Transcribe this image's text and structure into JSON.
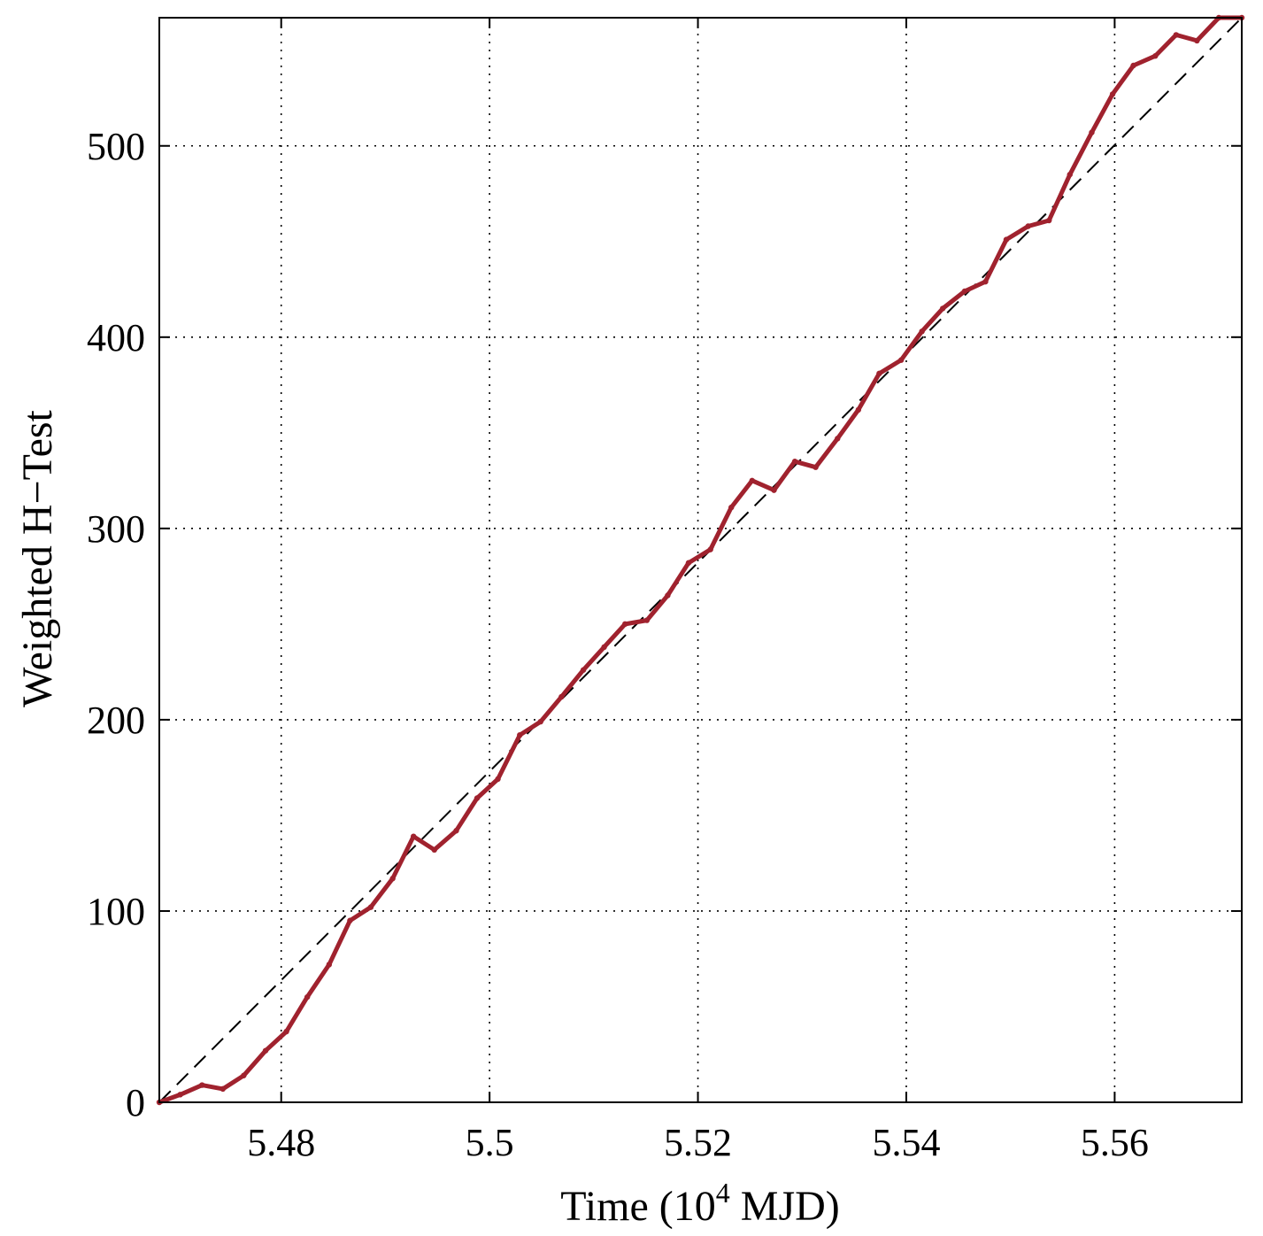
{
  "chart_data": {
    "type": "line",
    "title": "",
    "xlabel": "Time (10^4 MJD)",
    "xlabel_parts": {
      "base": "Time (10",
      "sup": "4",
      "rest": " MJD)"
    },
    "ylabel": "Weighted H−Test",
    "xlim": [
      5.4683,
      5.5722
    ],
    "ylim": [
      0,
      567
    ],
    "xticks": [
      5.48,
      5.5,
      5.52,
      5.54,
      5.56
    ],
    "xtick_labels": [
      "5.48",
      "5.5",
      "5.52",
      "5.54",
      "5.56"
    ],
    "yticks": [
      0,
      100,
      200,
      300,
      400,
      500
    ],
    "ytick_labels": [
      "0",
      "100",
      "200",
      "300",
      "400",
      "500"
    ],
    "grid": true,
    "colors": {
      "series": "#a0222e",
      "reference": "#000000"
    },
    "series": [
      {
        "style": "solid",
        "x": [
          5.4683,
          5.4703,
          5.4724,
          5.4744,
          5.4764,
          5.4785,
          5.4805,
          5.4825,
          5.4846,
          5.4866,
          5.4886,
          5.4907,
          5.4927,
          5.4947,
          5.4968,
          5.4988,
          5.5008,
          5.5029,
          5.5049,
          5.5069,
          5.509,
          5.511,
          5.513,
          5.5151,
          5.5171,
          5.5191,
          5.5212,
          5.5232,
          5.5252,
          5.5273,
          5.5293,
          5.5313,
          5.5334,
          5.5354,
          5.5374,
          5.5395,
          5.5415,
          5.5435,
          5.5456,
          5.5476,
          5.5496,
          5.5517,
          5.5537,
          5.5557,
          5.5578,
          5.5598,
          5.5618,
          5.5639,
          5.5659,
          5.5679,
          5.57,
          5.5722
        ],
        "y": [
          0,
          4,
          9,
          7,
          14,
          27,
          37,
          55,
          72,
          95,
          102,
          117,
          139,
          132,
          142,
          159,
          169,
          192,
          199,
          212,
          226,
          238,
          250,
          252,
          265,
          282,
          289,
          311,
          325,
          320,
          335,
          332,
          347,
          362,
          381,
          388,
          403,
          415,
          424,
          429,
          451,
          458,
          461,
          485,
          507,
          527,
          542,
          547,
          558,
          555,
          567,
          567
        ]
      },
      {
        "style": "dashed",
        "x": [
          5.4683,
          5.5722
        ],
        "y": [
          0,
          567
        ]
      }
    ]
  }
}
